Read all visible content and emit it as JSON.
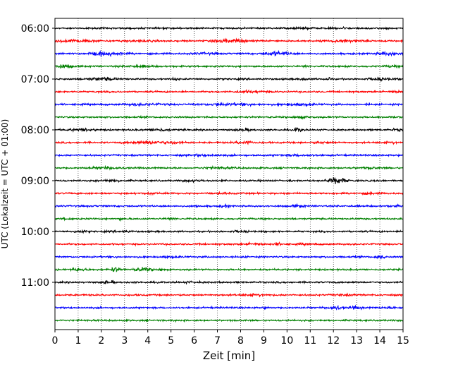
{
  "chart_data": {
    "type": "line",
    "title": "",
    "xlabel": "Zeit  [min]",
    "ylabel": "UTC (Lokalzeit = UTC + 01:00)",
    "xlim": [
      0,
      15
    ],
    "x_ticks": [
      0,
      1,
      2,
      3,
      4,
      5,
      6,
      7,
      8,
      9,
      10,
      11,
      12,
      13,
      14,
      15
    ],
    "x_tick_labels": [
      "0",
      "1",
      "2",
      "3",
      "4",
      "5",
      "6",
      "7",
      "8",
      "9",
      "10",
      "11",
      "12",
      "13",
      "14",
      "15"
    ],
    "y_tick_labels": [
      "06:00",
      "07:00",
      "08:00",
      "09:00",
      "10:00",
      "11:00"
    ],
    "grid": "vertical dotted",
    "trace_colors": [
      "#000000",
      "#ff0000",
      "#0000ff",
      "#008000"
    ],
    "traces": [
      {
        "time": "06:00",
        "color": "#000000",
        "events": [
          [
            10.7,
            0.4,
            0.3
          ],
          [
            12.4,
            1.3,
            0.05
          ],
          [
            5.4,
            0.4,
            0.05
          ]
        ]
      },
      {
        "time": "06:15",
        "color": "#ff0000",
        "events": [
          [
            0.9,
            1.1,
            0.5
          ],
          [
            7.6,
            1.1,
            0.5
          ],
          [
            12.5,
            0.9,
            0.5
          ],
          [
            3.6,
            0.5,
            0.5
          ]
        ]
      },
      {
        "time": "06:30",
        "color": "#0000ff",
        "events": [
          [
            2.2,
            1.3,
            0.5
          ],
          [
            9.6,
            1.5,
            0.4
          ],
          [
            14.4,
            1.1,
            0.4
          ],
          [
            6.5,
            0.5,
            0.4
          ]
        ]
      },
      {
        "time": "06:45",
        "color": "#008000",
        "events": [
          [
            0.3,
            1.6,
            0.3
          ],
          [
            3.6,
            0.6,
            0.4
          ],
          [
            10.8,
            0.8,
            0.05
          ],
          [
            14.5,
            0.6,
            0.2
          ]
        ]
      },
      {
        "time": "07:00",
        "color": "#000000",
        "events": [
          [
            2.0,
            1.2,
            0.4
          ],
          [
            5.2,
            0.8,
            0.1
          ],
          [
            10.7,
            0.8,
            0.1
          ],
          [
            11.8,
            1.9,
            0.05
          ],
          [
            14.0,
            0.9,
            0.3
          ]
        ]
      },
      {
        "time": "07:15",
        "color": "#ff0000",
        "events": [
          [
            8.5,
            0.7,
            0.5
          ],
          [
            14.8,
            0.6,
            0.3
          ]
        ]
      },
      {
        "time": "07:30",
        "color": "#0000ff",
        "events": [
          [
            3.8,
            0.6,
            0.6
          ],
          [
            7.5,
            0.8,
            0.8
          ],
          [
            10.5,
            0.7,
            0.5
          ],
          [
            13.5,
            1.2,
            0.05
          ]
        ]
      },
      {
        "time": "07:45",
        "color": "#008000",
        "events": [
          [
            10.6,
            0.8,
            0.2
          ],
          [
            14.5,
            1.6,
            0.05
          ]
        ]
      },
      {
        "time": "08:00",
        "color": "#000000",
        "events": [
          [
            1.2,
            0.8,
            0.4
          ],
          [
            4.5,
            0.9,
            0.3
          ],
          [
            8.2,
            0.8,
            0.2
          ],
          [
            10.4,
            2.1,
            0.05
          ],
          [
            10.6,
            1.8,
            0.05
          ],
          [
            14.8,
            0.7,
            0.2
          ]
        ]
      },
      {
        "time": "08:15",
        "color": "#ff0000",
        "events": [
          [
            4.1,
            1.1,
            0.6
          ],
          [
            5.2,
            0.8,
            0.2
          ],
          [
            8.2,
            0.9,
            0.3
          ],
          [
            11.5,
            0.6,
            0.3
          ],
          [
            14.5,
            0.5,
            0.3
          ]
        ]
      },
      {
        "time": "08:30",
        "color": "#0000ff",
        "events": [
          [
            6.5,
            0.5,
            0.5
          ],
          [
            10.5,
            0.5,
            0.5
          ]
        ]
      },
      {
        "time": "08:45",
        "color": "#008000",
        "events": [
          [
            2.2,
            0.7,
            0.5
          ],
          [
            7.0,
            0.6,
            0.4
          ],
          [
            13.5,
            0.5,
            0.4
          ]
        ]
      },
      {
        "time": "09:00",
        "color": "#000000",
        "events": [
          [
            12.0,
            2.0,
            0.25
          ],
          [
            12.3,
            1.4,
            0.2
          ],
          [
            2.4,
            0.5,
            0.4
          ],
          [
            6.0,
            0.6,
            0.3
          ]
        ]
      },
      {
        "time": "09:15",
        "color": "#ff0000",
        "events": [
          [
            7.2,
            0.7,
            0.1
          ],
          [
            4.1,
            0.4,
            0.3
          ],
          [
            13.5,
            0.5,
            0.3
          ]
        ]
      },
      {
        "time": "09:30",
        "color": "#0000ff",
        "events": [
          [
            7.2,
            1.3,
            0.05
          ],
          [
            7.4,
            1.3,
            0.05
          ],
          [
            6.1,
            0.8,
            0.05
          ],
          [
            10.5,
            0.7,
            0.2
          ],
          [
            14.8,
            0.5,
            0.2
          ]
        ]
      },
      {
        "time": "09:45",
        "color": "#008000",
        "events": [
          [
            0.5,
            0.8,
            0.1
          ],
          [
            2.8,
            1.1,
            0.05
          ],
          [
            5.0,
            0.5,
            0.2
          ]
        ]
      },
      {
        "time": "10:00",
        "color": "#000000",
        "events": [
          [
            1.1,
            0.7,
            0.2
          ],
          [
            3.0,
            0.4,
            0.3
          ],
          [
            8.0,
            0.4,
            0.3
          ]
        ]
      },
      {
        "time": "10:15",
        "color": "#ff0000",
        "events": [
          [
            8.6,
            0.7,
            0.3
          ],
          [
            9.6,
            0.9,
            0.1
          ],
          [
            10.7,
            0.5,
            0.1
          ]
        ]
      },
      {
        "time": "10:30",
        "color": "#0000ff",
        "events": [
          [
            14.0,
            1.4,
            0.15
          ],
          [
            5.0,
            0.4,
            0.3
          ]
        ]
      },
      {
        "time": "10:45",
        "color": "#008000",
        "events": [
          [
            1.0,
            0.8,
            0.3
          ],
          [
            2.6,
            1.7,
            0.15
          ],
          [
            3.8,
            1.3,
            0.3
          ],
          [
            4.6,
            1.1,
            0.05
          ]
        ]
      },
      {
        "time": "11:00",
        "color": "#000000",
        "events": [
          [
            2.2,
            1.7,
            0.05
          ],
          [
            2.5,
            1.1,
            0.05
          ],
          [
            5.8,
            0.4,
            0.3
          ]
        ]
      },
      {
        "time": "11:15",
        "color": "#ff0000",
        "events": [
          [
            8.6,
            0.6,
            0.4
          ],
          [
            12.4,
            0.5,
            0.3
          ]
        ]
      },
      {
        "time": "11:30",
        "color": "#0000ff",
        "events": [
          [
            12.1,
            1.4,
            0.2
          ],
          [
            13.0,
            0.9,
            0.2
          ],
          [
            9.1,
            0.7,
            0.1
          ],
          [
            14.5,
            0.5,
            0.3
          ]
        ]
      },
      {
        "time": "11:45",
        "color": "#008000",
        "events": []
      }
    ]
  }
}
